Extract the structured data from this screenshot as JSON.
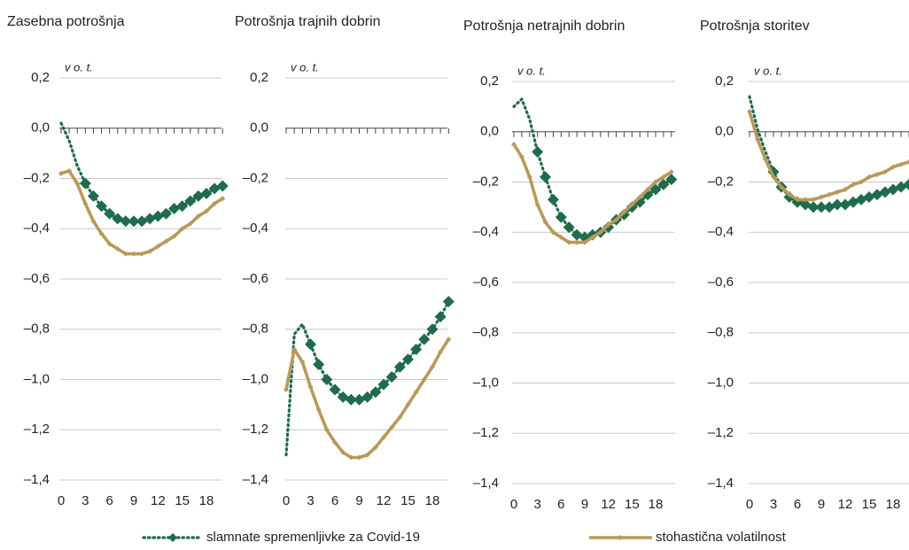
{
  "chart_data": [
    {
      "type": "line",
      "title": "Zasebna potrošnja",
      "annotation": "v o. t.",
      "x": [
        0,
        1,
        2,
        3,
        4,
        5,
        6,
        7,
        8,
        9,
        10,
        11,
        12,
        13,
        14,
        15,
        16,
        17,
        18,
        19,
        20
      ],
      "xlim": [
        0,
        20
      ],
      "xticks": [
        0,
        3,
        6,
        9,
        12,
        15,
        18
      ],
      "ylim": [
        -1.4,
        0.2
      ],
      "yticks": [
        {
          "value": 0.2,
          "label": "0,2"
        },
        {
          "value": 0,
          "label": "0,0"
        },
        {
          "value": -0.2,
          "label": "–0,2"
        },
        {
          "value": -0.4,
          "label": "–0,4"
        },
        {
          "value": -0.6,
          "label": "–0,6"
        },
        {
          "value": -0.8,
          "label": "–0,8"
        },
        {
          "value": -1.0,
          "label": "–1,0"
        },
        {
          "value": -1.2,
          "label": "–1,2"
        },
        {
          "value": -1.4,
          "label": "–1,4"
        }
      ],
      "grid": true,
      "series": [
        {
          "name": "slamnate spremenljivke za Covid-19",
          "color": "#1f6b4c",
          "values": [
            0.02,
            -0.05,
            -0.15,
            -0.22,
            -0.27,
            -0.31,
            -0.34,
            -0.36,
            -0.37,
            -0.37,
            -0.37,
            -0.36,
            -0.35,
            -0.34,
            -0.32,
            -0.31,
            -0.29,
            -0.27,
            -0.26,
            -0.24,
            -0.23
          ]
        },
        {
          "name": "stohastična volatilnost",
          "color": "#b8995a",
          "values": [
            -0.18,
            -0.17,
            -0.22,
            -0.3,
            -0.37,
            -0.42,
            -0.46,
            -0.48,
            -0.5,
            -0.5,
            -0.5,
            -0.49,
            -0.47,
            -0.45,
            -0.43,
            -0.4,
            -0.38,
            -0.35,
            -0.33,
            -0.3,
            -0.28
          ]
        }
      ]
    },
    {
      "type": "line",
      "title": "Potrošnja trajnih dobrin",
      "annotation": "v o. t.",
      "x": [
        0,
        1,
        2,
        3,
        4,
        5,
        6,
        7,
        8,
        9,
        10,
        11,
        12,
        13,
        14,
        15,
        16,
        17,
        18,
        19,
        20
      ],
      "xlim": [
        0,
        20
      ],
      "xticks": [
        0,
        3,
        6,
        9,
        12,
        15,
        18
      ],
      "ylim": [
        -1.4,
        0.2
      ],
      "yticks": [
        {
          "value": 0.2,
          "label": "0,2"
        },
        {
          "value": 0,
          "label": "0,0"
        },
        {
          "value": -0.2,
          "label": "–0,2"
        },
        {
          "value": -0.4,
          "label": "–0,4"
        },
        {
          "value": -0.6,
          "label": "–0,6"
        },
        {
          "value": -0.8,
          "label": "–0,8"
        },
        {
          "value": -1.0,
          "label": "–1,0"
        },
        {
          "value": -1.2,
          "label": "–1,2"
        },
        {
          "value": -1.4,
          "label": "–1,4"
        }
      ],
      "grid": true,
      "series": [
        {
          "color": "#1f6b4c",
          "values": [
            -1.3,
            -0.82,
            -0.78,
            -0.86,
            -0.94,
            -1.0,
            -1.04,
            -1.07,
            -1.08,
            -1.08,
            -1.07,
            -1.05,
            -1.02,
            -0.99,
            -0.95,
            -0.92,
            -0.88,
            -0.84,
            -0.8,
            -0.75,
            -0.69
          ]
        },
        {
          "color": "#b8995a",
          "values": [
            -1.04,
            -0.88,
            -0.93,
            -1.03,
            -1.12,
            -1.2,
            -1.25,
            -1.29,
            -1.31,
            -1.31,
            -1.3,
            -1.27,
            -1.23,
            -1.19,
            -1.15,
            -1.1,
            -1.05,
            -1.0,
            -0.95,
            -0.89,
            -0.84
          ]
        }
      ]
    },
    {
      "type": "line",
      "title": "Potrošnja netrajnih dobrin",
      "annotation": "v o. t.",
      "x": [
        0,
        1,
        2,
        3,
        4,
        5,
        6,
        7,
        8,
        9,
        10,
        11,
        12,
        13,
        14,
        15,
        16,
        17,
        18,
        19,
        20
      ],
      "xlim": [
        0,
        20
      ],
      "xticks": [
        0,
        3,
        6,
        9,
        12,
        15,
        18
      ],
      "ylim": [
        -1.4,
        0.2
      ],
      "yticks": [
        {
          "value": 0.2,
          "label": "0,2"
        },
        {
          "value": 0,
          "label": "0,0"
        },
        {
          "value": -0.2,
          "label": "–0,2"
        },
        {
          "value": -0.4,
          "label": "–0,4"
        },
        {
          "value": -0.6,
          "label": "–0,6"
        },
        {
          "value": -0.8,
          "label": "–0,8"
        },
        {
          "value": -1.0,
          "label": "–1,0"
        },
        {
          "value": -1.2,
          "label": "–1,2"
        },
        {
          "value": -1.4,
          "label": "–1,4"
        }
      ],
      "grid": true,
      "series": [
        {
          "color": "#1f6b4c",
          "values": [
            0.1,
            0.13,
            0.05,
            -0.08,
            -0.18,
            -0.27,
            -0.34,
            -0.38,
            -0.41,
            -0.42,
            -0.41,
            -0.4,
            -0.38,
            -0.35,
            -0.33,
            -0.3,
            -0.28,
            -0.25,
            -0.23,
            -0.21,
            -0.19
          ]
        },
        {
          "color": "#b8995a",
          "values": [
            -0.05,
            -0.1,
            -0.18,
            -0.29,
            -0.36,
            -0.4,
            -0.42,
            -0.44,
            -0.44,
            -0.44,
            -0.42,
            -0.4,
            -0.37,
            -0.35,
            -0.32,
            -0.29,
            -0.26,
            -0.23,
            -0.2,
            -0.18,
            -0.16
          ]
        }
      ]
    },
    {
      "type": "line",
      "title": "Potrošnja storitev",
      "annotation": "v o. t.",
      "x": [
        0,
        1,
        2,
        3,
        4,
        5,
        6,
        7,
        8,
        9,
        10,
        11,
        12,
        13,
        14,
        15,
        16,
        17,
        18,
        19,
        20
      ],
      "xlim": [
        0,
        20
      ],
      "xticks": [
        0,
        3,
        6,
        9,
        12,
        15,
        18
      ],
      "ylim": [
        -1.4,
        0.2
      ],
      "yticks": [
        {
          "value": 0.2,
          "label": "0,2"
        },
        {
          "value": 0,
          "label": "0,0"
        },
        {
          "value": -0.2,
          "label": "–0,2"
        },
        {
          "value": -0.4,
          "label": "–0,4"
        },
        {
          "value": -0.6,
          "label": "–0,6"
        },
        {
          "value": -0.8,
          "label": "–0,8"
        },
        {
          "value": -1.0,
          "label": "–1,0"
        },
        {
          "value": -1.2,
          "label": "–1,2"
        },
        {
          "value": -1.4,
          "label": "–1,4"
        }
      ],
      "grid": true,
      "series": [
        {
          "color": "#1f6b4c",
          "values": [
            0.14,
            0.01,
            -0.08,
            -0.16,
            -0.22,
            -0.26,
            -0.28,
            -0.29,
            -0.3,
            -0.3,
            -0.3,
            -0.29,
            -0.29,
            -0.28,
            -0.27,
            -0.26,
            -0.25,
            -0.24,
            -0.23,
            -0.22,
            -0.21
          ]
        },
        {
          "color": "#b8995a",
          "values": [
            0.08,
            -0.03,
            -0.11,
            -0.18,
            -0.22,
            -0.25,
            -0.27,
            -0.27,
            -0.27,
            -0.26,
            -0.25,
            -0.24,
            -0.23,
            -0.21,
            -0.2,
            -0.18,
            -0.17,
            -0.16,
            -0.14,
            -0.13,
            -0.12
          ]
        }
      ]
    }
  ]
}
